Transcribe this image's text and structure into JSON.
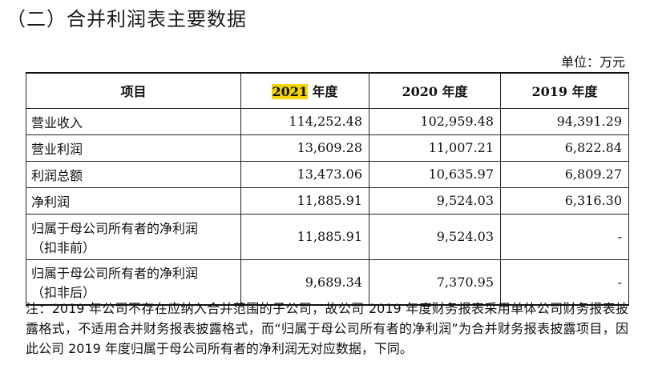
{
  "title": "（二）合并利润表主要数据",
  "unit": "单位：万元",
  "table": {
    "headers": {
      "col0": "项目",
      "col1_highlight": "2021",
      "col1_rest": " 年度",
      "col2": "2020 年度",
      "col3": "2019 年度"
    },
    "rows": [
      {
        "label": "营业收入",
        "y2021": "114,252.48",
        "y2020": "102,959.48",
        "y2019": "94,391.29"
      },
      {
        "label": "营业利润",
        "y2021": "13,609.28",
        "y2020": "11,007.21",
        "y2019": "6,822.84"
      },
      {
        "label": "利润总额",
        "y2021": "13,473.06",
        "y2020": "10,635.97",
        "y2019": "6,809.27"
      },
      {
        "label": "净利润",
        "y2021": "11,885.91",
        "y2020": "9,524.03",
        "y2019": "6,316.30"
      },
      {
        "label": "归属于母公司所有者的净利润",
        "label_line2": "（扣非前）",
        "y2021": "11,885.91",
        "y2020": "9,524.03",
        "y2019": "-"
      },
      {
        "label": "归属于母公司所有者的净利润",
        "label_line2": "（扣非后）",
        "y2021": "9,689.34",
        "y2020": "7,370.95",
        "y2019": "-"
      }
    ]
  },
  "note": "注：2019 年公司不存在应纳入合并范围的子公司，故公司 2019 年度财务报表采用单体公司财务报表披露格式，不适用合并财务报表披露格式，而“归属于母公司所有者的净利润”为合并财务报表披露项目，因此公司 2019 年度归属于母公司所有者的净利润无对应数据，下同。"
}
